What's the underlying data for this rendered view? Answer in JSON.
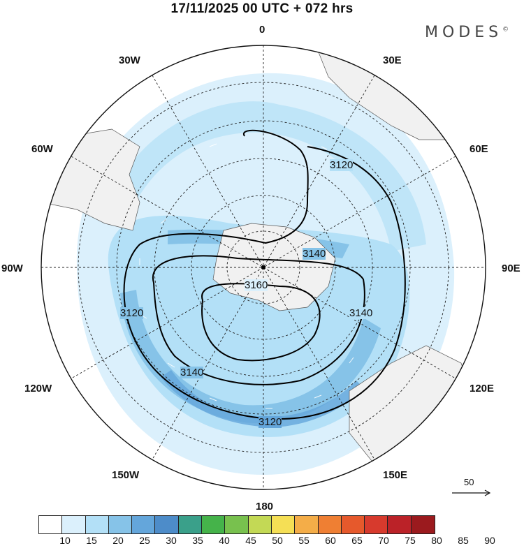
{
  "title": "17/11/2025  00 UTC  + 072 hrs",
  "brand": {
    "name": "MODES",
    "symbol": "©"
  },
  "map": {
    "projection": "south-polar-stereographic",
    "longitude_labels": [
      "0",
      "30E",
      "60E",
      "90E",
      "120E",
      "150E",
      "180",
      "150W",
      "120W",
      "90W",
      "60W",
      "30W"
    ],
    "contour_labels": [
      "3120",
      "3140",
      "3160",
      "3140",
      "3120",
      "3140",
      "3120"
    ],
    "reference_vector": {
      "value": "50"
    }
  },
  "colorbar": {
    "colors": [
      "#ffffff",
      "#dbf0fc",
      "#b3e0f7",
      "#86c3e8",
      "#64a6db",
      "#4d8cc9",
      "#3aa08a",
      "#45b34a",
      "#78c14e",
      "#c3d955",
      "#f5df55",
      "#f4ad48",
      "#ef7f33",
      "#e6592c",
      "#d73a2d",
      "#bb2228",
      "#9b1a1e"
    ],
    "ticks": [
      "10",
      "15",
      "20",
      "25",
      "30",
      "35",
      "40",
      "45",
      "50",
      "55",
      "60",
      "65",
      "70",
      "75",
      "80",
      "85",
      "90"
    ]
  }
}
